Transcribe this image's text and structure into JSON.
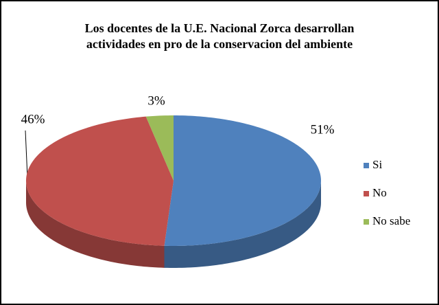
{
  "chart_data": {
    "type": "pie",
    "title": "Los docentes de la U.E. Nacional Zorca desarrollan actividades en pro de la conservacion del ambiente",
    "categories": [
      "Si",
      "No",
      "No sabe"
    ],
    "values": [
      51,
      46,
      3
    ],
    "value_labels": [
      "51%",
      "46%",
      "3%"
    ],
    "colors": [
      "#4f81bd",
      "#c0504d",
      "#9bbb59"
    ],
    "legend": "right"
  }
}
